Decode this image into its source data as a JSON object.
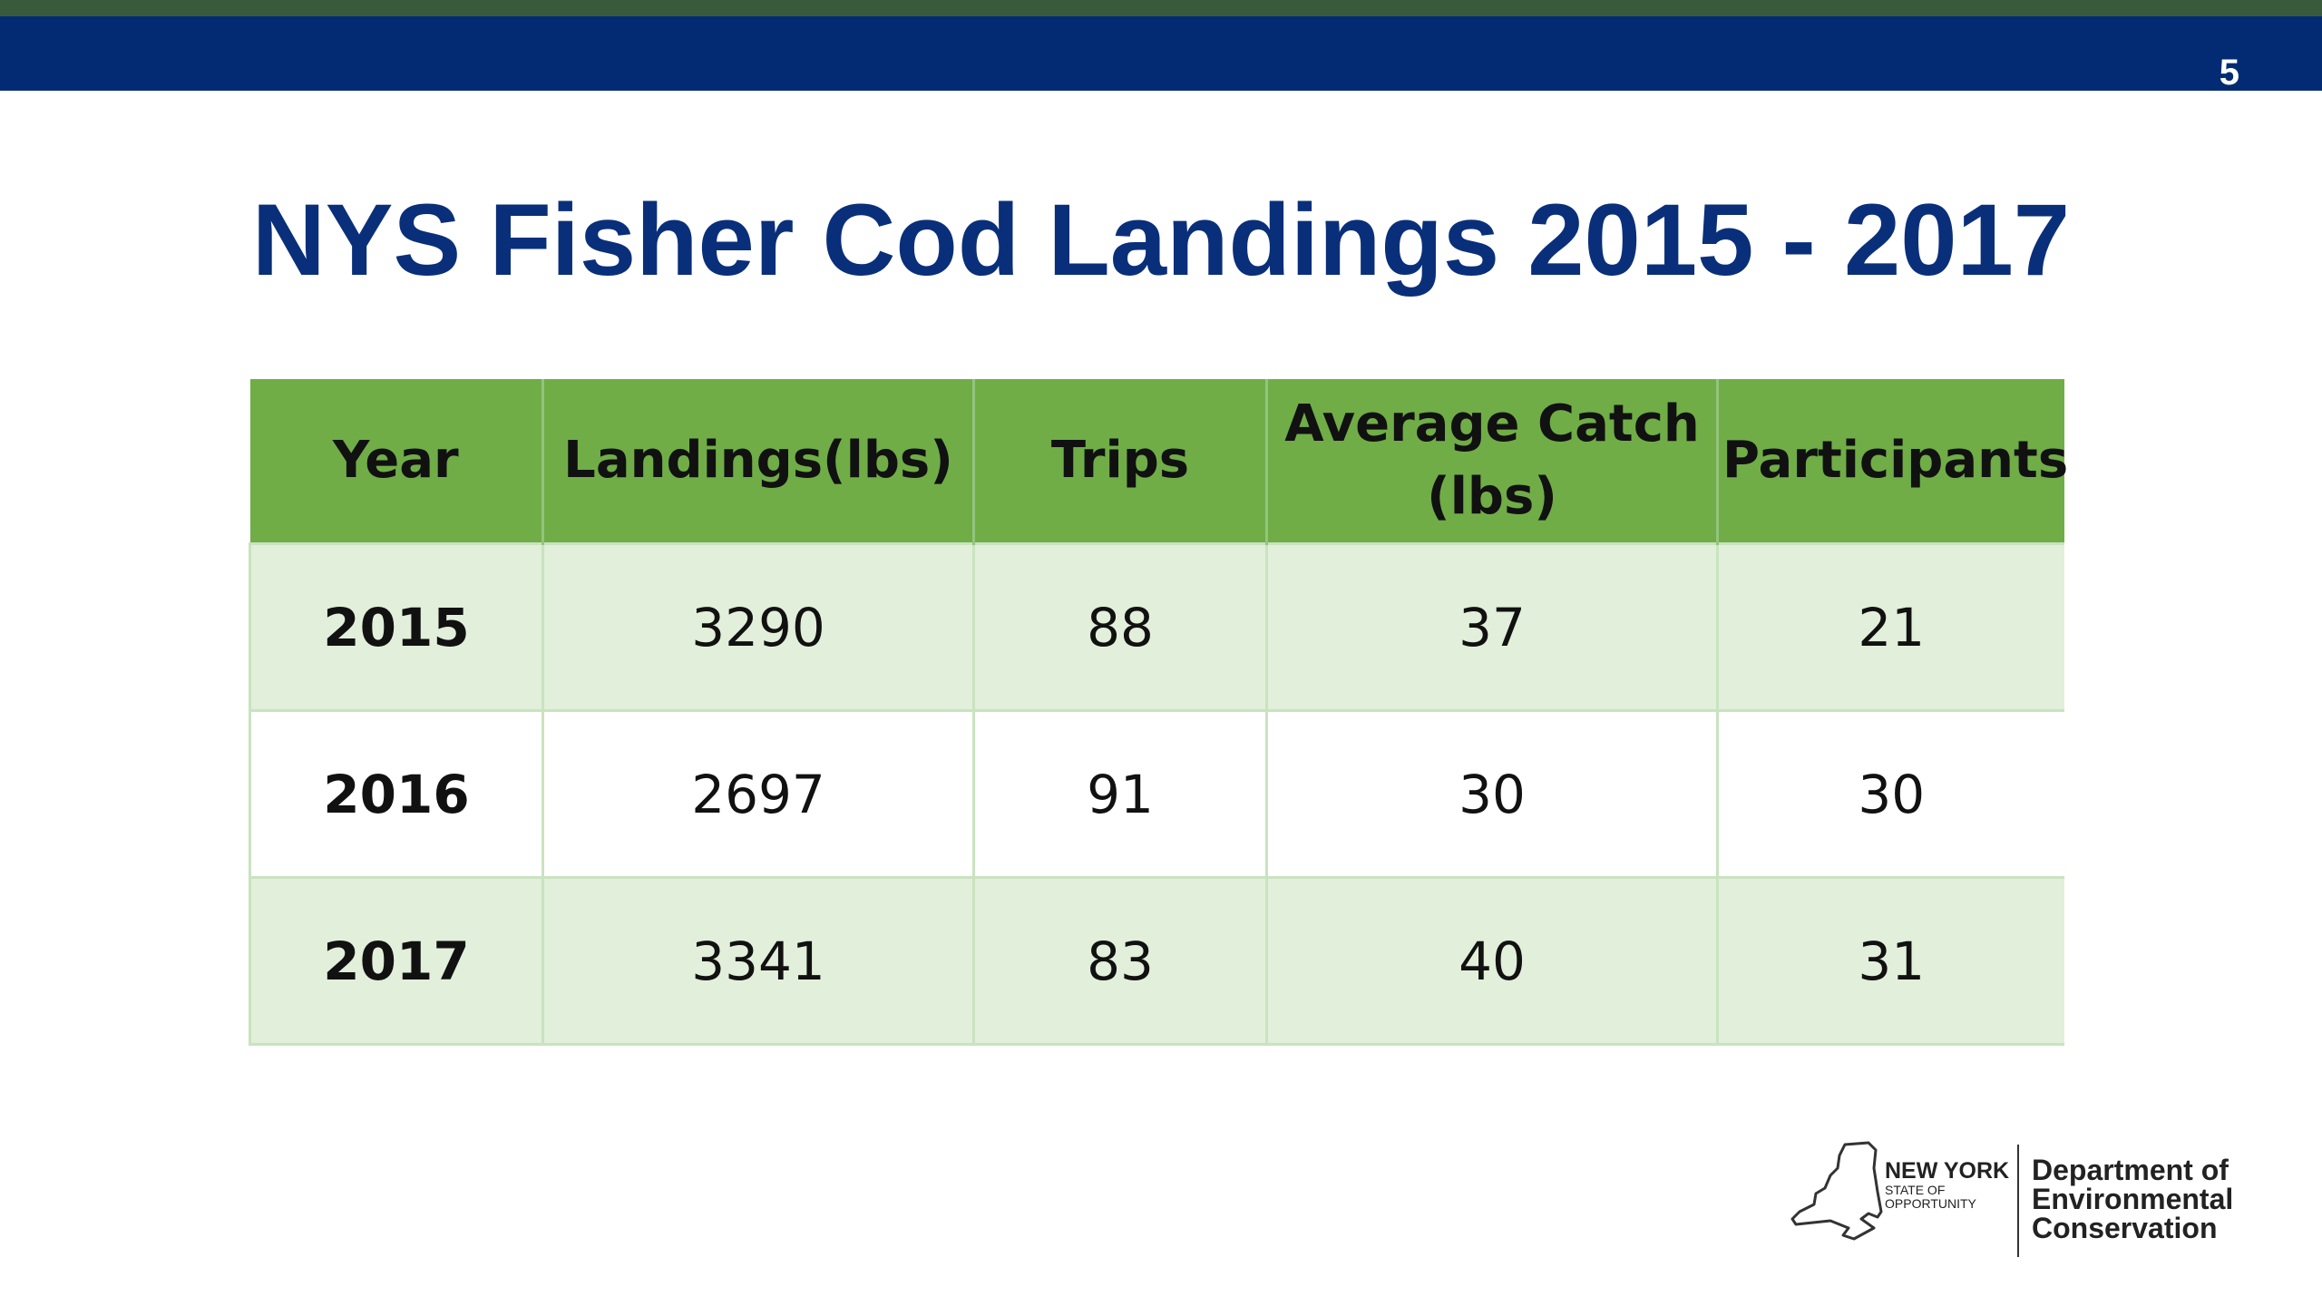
{
  "slide": {
    "number": "5",
    "title": "NYS Fisher Cod Landings 2015 - 2017"
  },
  "table": {
    "headers": [
      "Year",
      "Landings(lbs)",
      "Trips",
      "Average Catch (lbs)",
      "Participants"
    ],
    "rows": [
      [
        "2015",
        "3290",
        "88",
        "37",
        "21"
      ],
      [
        "2016",
        "2697",
        "91",
        "30",
        "30"
      ],
      [
        "2017",
        "3341",
        "83",
        "40",
        "31"
      ]
    ]
  },
  "logo": {
    "state_name": "NEW YORK",
    "state_tagline_1": "STATE OF",
    "state_tagline_2": "OPPORTUNITY",
    "dept_line_1": "Department of",
    "dept_line_2": "Environmental",
    "dept_line_3": "Conservation"
  },
  "colors": {
    "header_bar": "#022b74",
    "top_stripe": "#3a5a3c",
    "title": "#0a2f7a",
    "table_header": "#70ad47",
    "table_band": "#e2efda"
  }
}
